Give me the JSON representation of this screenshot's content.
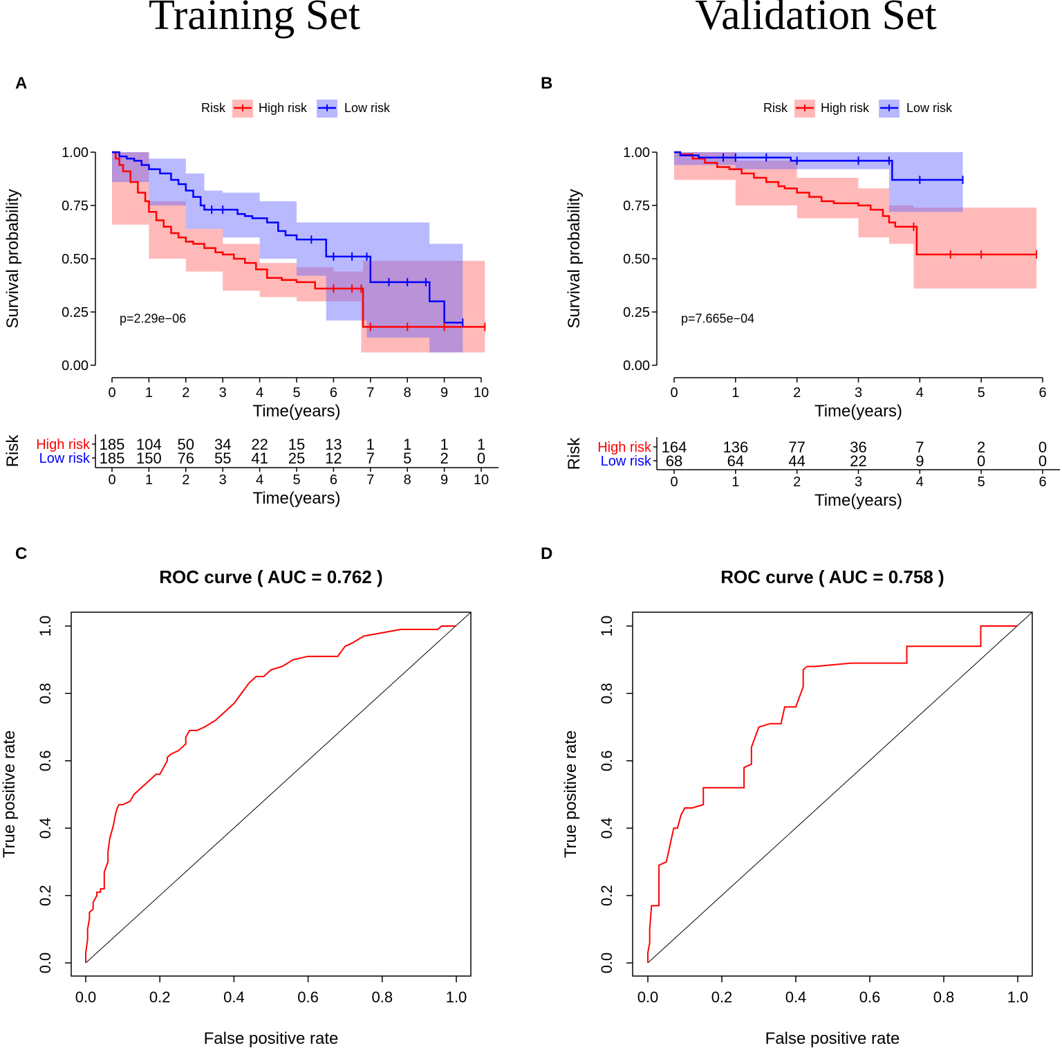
{
  "headers": {
    "left": "Training Set",
    "right": "Validation Set"
  },
  "panel_labels": [
    "A",
    "B",
    "C",
    "D"
  ],
  "chart_data": [
    {
      "id": "A",
      "type": "line",
      "subtype": "kaplan-meier",
      "legend_title": "Risk",
      "legend": [
        "High risk",
        "Low risk"
      ],
      "xlabel": "Time(years)",
      "ylabel": "Survival probability",
      "xlim": [
        0,
        10
      ],
      "ylim": [
        0,
        1
      ],
      "xticks": [
        "0",
        "1",
        "2",
        "3",
        "4",
        "5",
        "6",
        "7",
        "8",
        "9",
        "10"
      ],
      "yticks": [
        "0.00",
        "0.25",
        "0.50",
        "0.75",
        "1.00"
      ],
      "pvalue": "p=2.29e−06",
      "colors": {
        "high": "#ff0000",
        "low": "#0000ff",
        "high_ci": "rgba(255,100,100,0.45)",
        "low_ci": "rgba(100,100,255,0.45)"
      },
      "series": [
        {
          "name": "High risk",
          "x": [
            0,
            0.1,
            0.2,
            0.3,
            0.5,
            0.7,
            0.9,
            1.0,
            1.2,
            1.4,
            1.6,
            1.8,
            2.0,
            2.2,
            2.5,
            2.8,
            3.0,
            3.3,
            3.6,
            3.9,
            4.2,
            4.6,
            5.0,
            5.5,
            6.0,
            6.5,
            6.75,
            6.8,
            7.0,
            8.0,
            9.0,
            10.1
          ],
          "y": [
            1.0,
            0.97,
            0.94,
            0.91,
            0.86,
            0.81,
            0.77,
            0.72,
            0.68,
            0.65,
            0.62,
            0.6,
            0.58,
            0.57,
            0.55,
            0.53,
            0.52,
            0.5,
            0.48,
            0.45,
            0.41,
            0.4,
            0.39,
            0.36,
            0.36,
            0.36,
            0.36,
            0.18,
            0.18,
            0.18,
            0.18,
            0.18
          ]
        },
        {
          "name": "Low risk",
          "x": [
            0,
            0.2,
            0.4,
            0.6,
            0.8,
            1.0,
            1.3,
            1.6,
            1.8,
            2.0,
            2.2,
            2.4,
            2.5,
            2.7,
            3.0,
            3.4,
            3.6,
            3.8,
            4.2,
            4.5,
            4.7,
            5.0,
            5.4,
            5.8,
            6.0,
            6.5,
            6.9,
            7.0,
            7.5,
            8.0,
            8.5,
            8.6,
            9.0,
            9.5
          ],
          "y": [
            1.0,
            0.98,
            0.97,
            0.96,
            0.94,
            0.92,
            0.9,
            0.87,
            0.85,
            0.82,
            0.79,
            0.75,
            0.73,
            0.73,
            0.73,
            0.71,
            0.7,
            0.69,
            0.67,
            0.63,
            0.61,
            0.59,
            0.59,
            0.51,
            0.51,
            0.51,
            0.51,
            0.39,
            0.39,
            0.39,
            0.39,
            0.3,
            0.2,
            0.2
          ]
        }
      ],
      "ci": {
        "high": {
          "x": [
            0,
            1,
            2,
            3,
            4,
            5,
            6,
            6.75,
            6.8,
            10.1
          ],
          "lower": [
            1.0,
            0.66,
            0.5,
            0.44,
            0.35,
            0.32,
            0.3,
            0.3,
            0.06,
            0.06
          ],
          "upper": [
            1.0,
            0.77,
            0.64,
            0.57,
            0.48,
            0.46,
            0.44,
            0.44,
            0.49,
            0.49
          ]
        },
        "low": {
          "x": [
            0,
            1,
            2,
            2.5,
            3,
            4,
            5,
            5.8,
            6.9,
            8.6,
            9.5
          ],
          "lower": [
            1.0,
            0.86,
            0.75,
            0.64,
            0.64,
            0.6,
            0.5,
            0.42,
            0.21,
            0.13,
            0.06
          ],
          "upper": [
            1.0,
            0.97,
            0.9,
            0.82,
            0.81,
            0.77,
            0.67,
            0.67,
            0.67,
            0.57,
            0.57
          ]
        }
      },
      "risk_table": {
        "title": "Risk",
        "rows": [
          {
            "label": "High risk",
            "values": [
              "185",
              "104",
              "50",
              "34",
              "22",
              "15",
              "13",
              "1",
              "1",
              "1",
              "1"
            ]
          },
          {
            "label": "Low risk",
            "values": [
              "185",
              "150",
              "76",
              "55",
              "41",
              "25",
              "12",
              "7",
              "5",
              "2",
              "0"
            ]
          }
        ]
      }
    },
    {
      "id": "B",
      "type": "line",
      "subtype": "kaplan-meier",
      "legend_title": "Risk",
      "legend": [
        "High risk",
        "Low risk"
      ],
      "xlabel": "Time(years)",
      "ylabel": "Survival probability",
      "xlim": [
        0,
        6
      ],
      "ylim": [
        0,
        1
      ],
      "xticks": [
        "0",
        "1",
        "2",
        "3",
        "4",
        "5",
        "6"
      ],
      "yticks": [
        "0.00",
        "0.25",
        "0.50",
        "0.75",
        "1.00"
      ],
      "pvalue": "p=7.665e−04",
      "colors": {
        "high": "#ff0000",
        "low": "#0000ff",
        "high_ci": "rgba(255,100,100,0.45)",
        "low_ci": "rgba(100,100,255,0.45)"
      },
      "series": [
        {
          "name": "High risk",
          "x": [
            0,
            0.1,
            0.3,
            0.5,
            0.7,
            0.9,
            1.1,
            1.3,
            1.5,
            1.7,
            1.8,
            2.0,
            2.2,
            2.4,
            2.6,
            3.0,
            3.2,
            3.4,
            3.5,
            3.6,
            3.9,
            3.95,
            4.5,
            5.0,
            5.9
          ],
          "y": [
            1.0,
            0.99,
            0.97,
            0.95,
            0.93,
            0.92,
            0.9,
            0.88,
            0.86,
            0.84,
            0.83,
            0.81,
            0.79,
            0.77,
            0.76,
            0.75,
            0.73,
            0.7,
            0.67,
            0.65,
            0.65,
            0.52,
            0.52,
            0.52,
            0.52
          ]
        },
        {
          "name": "Low risk",
          "x": [
            0,
            0.1,
            0.4,
            0.8,
            1.0,
            1.5,
            1.9,
            2.0,
            3.0,
            3.5,
            3.55,
            4.0,
            4.7
          ],
          "y": [
            1.0,
            0.985,
            0.975,
            0.975,
            0.975,
            0.975,
            0.96,
            0.96,
            0.96,
            0.96,
            0.87,
            0.87,
            0.87
          ]
        }
      ],
      "ci": {
        "high": {
          "x": [
            0,
            1,
            2,
            3,
            3.5,
            3.9,
            3.95,
            5.9
          ],
          "lower": [
            1.0,
            0.87,
            0.75,
            0.69,
            0.6,
            0.57,
            0.36,
            0.36
          ],
          "upper": [
            1.0,
            0.96,
            0.88,
            0.83,
            0.75,
            0.74,
            0.74,
            0.74
          ]
        },
        "low": {
          "x": [
            0,
            1,
            1.9,
            3.5,
            3.55,
            4.7
          ],
          "lower": [
            1.0,
            0.94,
            0.92,
            0.92,
            0.72,
            0.72
          ],
          "upper": [
            1.0,
            1.0,
            1.0,
            1.0,
            1.0,
            1.0
          ]
        }
      },
      "risk_table": {
        "title": "Risk",
        "rows": [
          {
            "label": "High risk",
            "values": [
              "164",
              "136",
              "77",
              "36",
              "7",
              "2",
              "0"
            ]
          },
          {
            "label": "Low risk",
            "values": [
              "68",
              "64",
              "44",
              "22",
              "9",
              "0",
              "0"
            ]
          }
        ]
      }
    },
    {
      "id": "C",
      "type": "line",
      "subtype": "roc",
      "title": "ROC curve ( AUC =  0.762 )",
      "xlabel": "False positive rate",
      "ylabel": "True positive rate",
      "xlim": [
        0,
        1
      ],
      "ylim": [
        0,
        1
      ],
      "xticks": [
        "0.0",
        "0.2",
        "0.4",
        "0.6",
        "0.8",
        "1.0"
      ],
      "yticks": [
        "0.0",
        "0.2",
        "0.4",
        "0.6",
        "0.8",
        "1.0"
      ],
      "fpr": [
        0,
        0,
        0.005,
        0.005,
        0.01,
        0.01,
        0.02,
        0.02,
        0.03,
        0.03,
        0.04,
        0.04,
        0.05,
        0.05,
        0.06,
        0.06,
        0.065,
        0.07,
        0.075,
        0.08,
        0.085,
        0.09,
        0.1,
        0.12,
        0.13,
        0.15,
        0.16,
        0.18,
        0.19,
        0.2,
        0.22,
        0.22,
        0.23,
        0.25,
        0.27,
        0.27,
        0.28,
        0.3,
        0.32,
        0.35,
        0.37,
        0.4,
        0.42,
        0.44,
        0.46,
        0.48,
        0.5,
        0.53,
        0.56,
        0.6,
        0.64,
        0.68,
        0.7,
        0.72,
        0.75,
        0.8,
        0.85,
        0.9,
        0.95,
        0.96,
        1.0
      ],
      "tpr": [
        0,
        0.03,
        0.07,
        0.1,
        0.13,
        0.15,
        0.16,
        0.18,
        0.2,
        0.21,
        0.21,
        0.22,
        0.22,
        0.27,
        0.3,
        0.33,
        0.37,
        0.39,
        0.41,
        0.44,
        0.46,
        0.47,
        0.47,
        0.48,
        0.5,
        0.52,
        0.53,
        0.55,
        0.56,
        0.56,
        0.6,
        0.61,
        0.62,
        0.63,
        0.65,
        0.67,
        0.69,
        0.69,
        0.7,
        0.72,
        0.74,
        0.77,
        0.8,
        0.83,
        0.85,
        0.85,
        0.87,
        0.88,
        0.9,
        0.91,
        0.91,
        0.91,
        0.94,
        0.95,
        0.97,
        0.98,
        0.99,
        0.99,
        0.99,
        1.0,
        1.0
      ]
    },
    {
      "id": "D",
      "type": "line",
      "subtype": "roc",
      "title": "ROC curve ( AUC =  0.758 )",
      "xlabel": "False positive rate",
      "ylabel": "True positive rate",
      "xlim": [
        0,
        1
      ],
      "ylim": [
        0,
        1
      ],
      "xticks": [
        "0.0",
        "0.2",
        "0.4",
        "0.6",
        "0.8",
        "1.0"
      ],
      "yticks": [
        "0.0",
        "0.2",
        "0.4",
        "0.6",
        "0.8",
        "1.0"
      ],
      "fpr": [
        0,
        0,
        0.005,
        0.005,
        0.01,
        0.03,
        0.03,
        0.05,
        0.06,
        0.07,
        0.08,
        0.09,
        0.1,
        0.12,
        0.15,
        0.15,
        0.26,
        0.26,
        0.28,
        0.28,
        0.3,
        0.3,
        0.33,
        0.36,
        0.37,
        0.4,
        0.42,
        0.42,
        0.43,
        0.45,
        0.55,
        0.6,
        0.7,
        0.7,
        0.75,
        0.9,
        0.9,
        1.0
      ],
      "tpr": [
        0,
        0.03,
        0.06,
        0.1,
        0.17,
        0.17,
        0.29,
        0.3,
        0.35,
        0.4,
        0.4,
        0.44,
        0.46,
        0.46,
        0.47,
        0.52,
        0.52,
        0.58,
        0.59,
        0.64,
        0.7,
        0.7,
        0.71,
        0.71,
        0.76,
        0.76,
        0.82,
        0.87,
        0.88,
        0.88,
        0.89,
        0.89,
        0.89,
        0.94,
        0.94,
        0.94,
        1.0,
        1.0
      ]
    }
  ]
}
